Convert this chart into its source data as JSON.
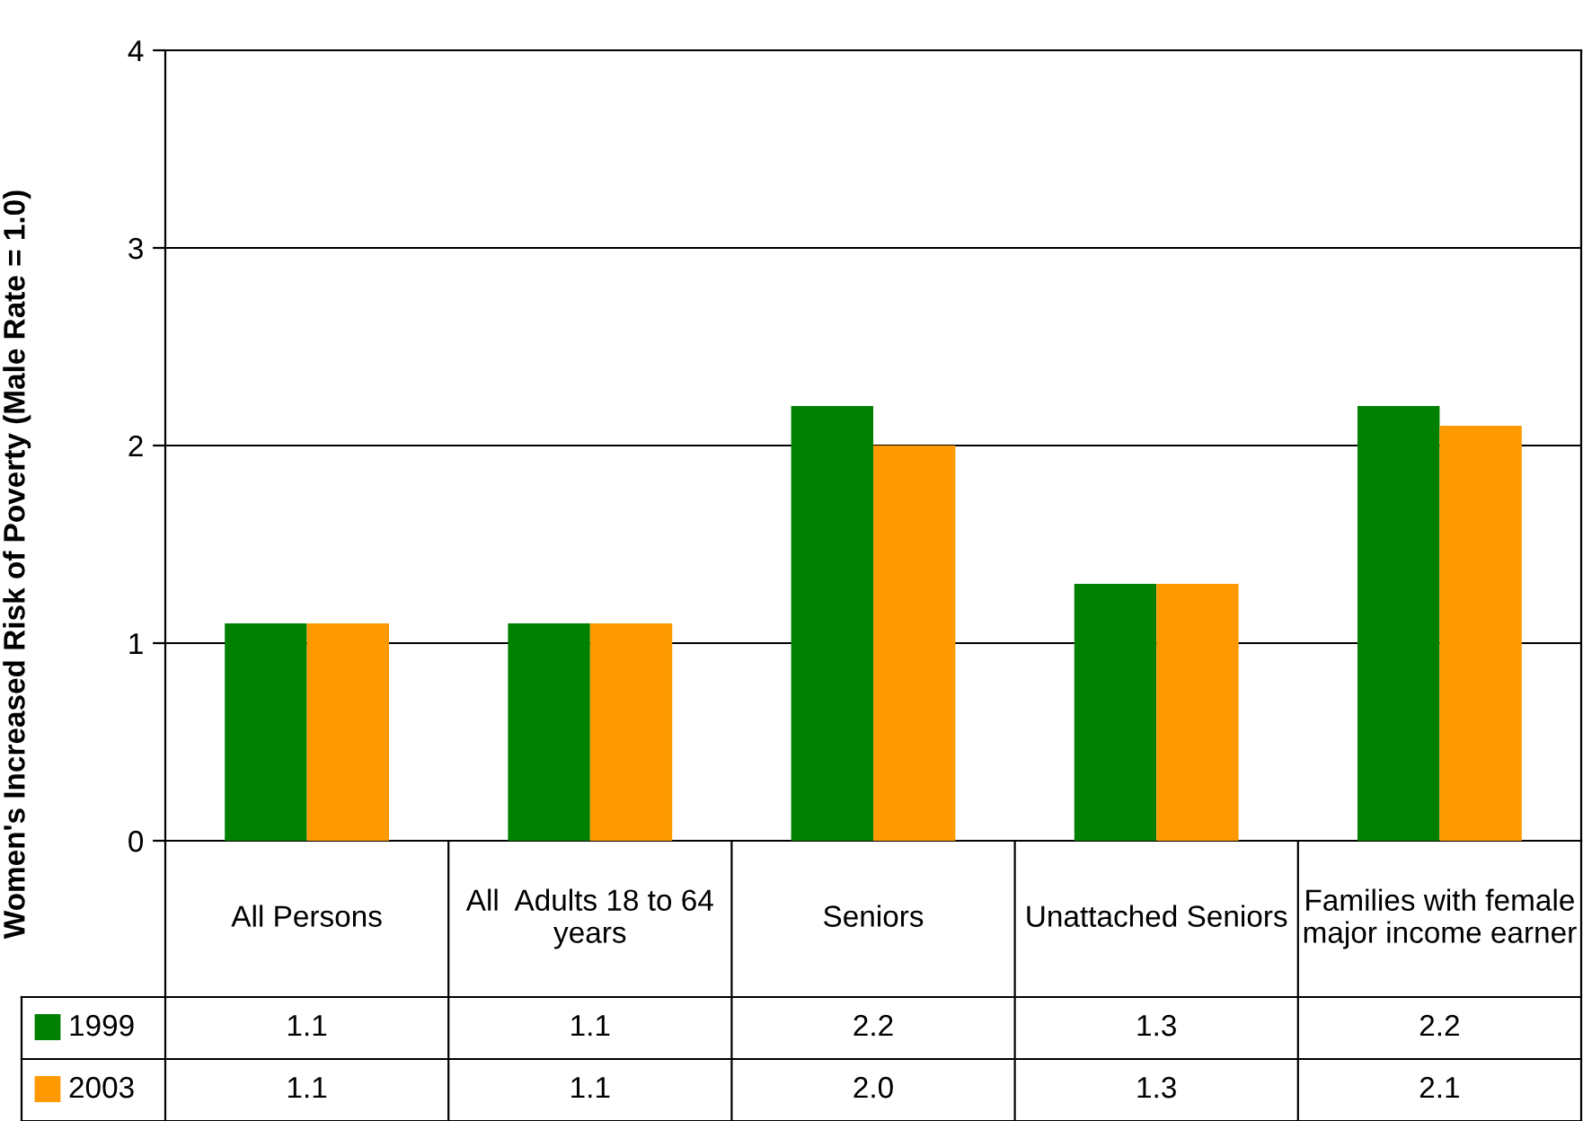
{
  "chart_data": {
    "type": "bar",
    "ylabel": "Women's Increased Risk of Poverty (Male Rate = 1.0)",
    "categories": [
      "All Persons",
      "All  Adults 18 to 64 years",
      "Seniors",
      "Unattached Seniors",
      "Families with female major income earner"
    ],
    "series": [
      {
        "name": "1999",
        "color": "#008000",
        "values": [
          1.1,
          1.1,
          2.2,
          1.3,
          2.2
        ],
        "value_labels": [
          "1.1",
          "1.1",
          "2.2",
          "1.3",
          "2.2"
        ]
      },
      {
        "name": "2003",
        "color": "#ff9900",
        "values": [
          1.1,
          1.1,
          2.0,
          1.3,
          2.1
        ],
        "value_labels": [
          "1.1",
          "1.1",
          "2.0",
          "1.3",
          "2.1"
        ]
      }
    ],
    "ylim": [
      0,
      4
    ],
    "yticks": [
      0,
      1,
      2,
      3,
      4
    ],
    "grid": "y",
    "legend": "bottom left"
  }
}
